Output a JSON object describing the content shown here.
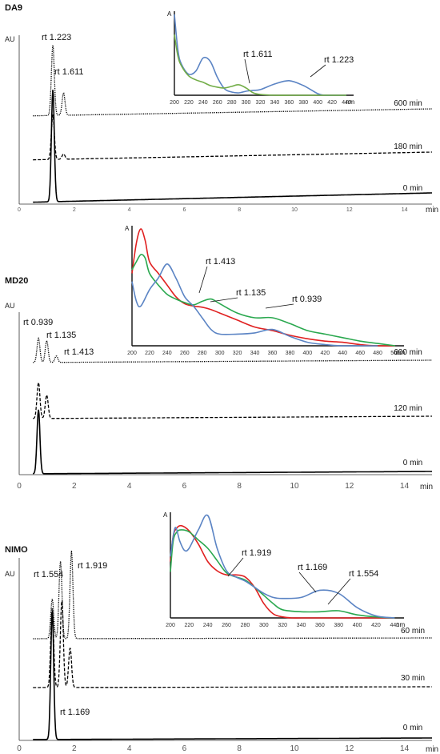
{
  "chart_data": [
    {
      "id": "DA9",
      "type": "line",
      "title": "DA9",
      "ylabel": "AU",
      "xlabel": "min",
      "xlim": [
        0,
        15
      ],
      "xticks": [
        "0",
        "2",
        "4",
        "6",
        "8",
        "10",
        "12",
        "14"
      ],
      "series": [
        {
          "name": "600 min",
          "style": "dotted",
          "peaks": [
            {
              "rt": 1.223,
              "h": 1.0
            },
            {
              "rt": 1.611,
              "h": 0.32
            }
          ]
        },
        {
          "name": "180 min",
          "style": "dashed",
          "peaks": [
            {
              "rt": 1.223,
              "h": 1.0
            },
            {
              "rt": 1.611,
              "h": 0.12
            }
          ]
        },
        {
          "name": "0 min",
          "style": "solid",
          "peaks": [
            {
              "rt": 1.223,
              "h": 1.0
            }
          ]
        }
      ],
      "peak_labels": [
        "rt 1.223",
        "rt 1.611"
      ],
      "inset": {
        "ylabel": "A",
        "xlabel": "nm",
        "xlim": [
          200,
          450
        ],
        "xticks": [
          "200",
          "220",
          "240",
          "260",
          "280",
          "300",
          "320",
          "340",
          "360",
          "380",
          "400",
          "420",
          "440"
        ],
        "series": [
          {
            "name": "rt 1.223",
            "color": "#5b84c4",
            "x": [
              200,
              205,
              210,
              220,
              230,
              240,
              250,
              260,
              270,
              280,
              290,
              300,
              310,
              320,
              340,
              360,
              380,
              400,
              410,
              420,
              440
            ],
            "y": [
              1.0,
              0.55,
              0.38,
              0.26,
              0.3,
              0.46,
              0.42,
              0.22,
              0.08,
              0.04,
              0.03,
              0.05,
              0.06,
              0.07,
              0.14,
              0.18,
              0.12,
              0.02,
              0.0,
              0.0,
              0.0
            ]
          },
          {
            "name": "rt 1.611",
            "color": "#72ad47",
            "x": [
              200,
              205,
              210,
              220,
              230,
              240,
              250,
              260,
              270,
              280,
              290,
              300,
              310,
              320,
              340,
              360,
              380,
              400,
              420,
              440
            ],
            "y": [
              0.75,
              0.48,
              0.36,
              0.24,
              0.19,
              0.16,
              0.12,
              0.1,
              0.09,
              0.11,
              0.13,
              0.09,
              0.03,
              0.01,
              0.0,
              0.0,
              0.0,
              0.0,
              0.0,
              0.0
            ]
          }
        ]
      }
    },
    {
      "id": "MD20",
      "type": "line",
      "title": "MD20",
      "ylabel": "AU",
      "xlabel": "min",
      "xlim": [
        0,
        15
      ],
      "xticks": [
        "0",
        "2",
        "4",
        "6",
        "8",
        "10",
        "12",
        "14"
      ],
      "series": [
        {
          "name": "600 min",
          "style": "dotted",
          "peaks": [
            {
              "rt": 0.7,
              "h": 0.75
            },
            {
              "rt": 1.0,
              "h": 0.68
            },
            {
              "rt": 1.35,
              "h": 0.2
            }
          ]
        },
        {
          "name": "120 min",
          "style": "dashed",
          "peaks": [
            {
              "rt": 0.7,
              "h": 1.0
            },
            {
              "rt": 1.0,
              "h": 0.65
            }
          ]
        },
        {
          "name": "0 min",
          "style": "solid",
          "peaks": [
            {
              "rt": 0.7,
              "h": 1.0
            }
          ]
        }
      ],
      "peak_labels": [
        "rt 0.939",
        "rt 1.135",
        "rt 1.413"
      ],
      "inset": {
        "ylabel": "A",
        "xlabel": "nm",
        "xlim": [
          200,
          510
        ],
        "xticks": [
          "200",
          "220",
          "240",
          "260",
          "280",
          "300",
          "320",
          "340",
          "360",
          "380",
          "400",
          "420",
          "440",
          "460",
          "480",
          "500"
        ],
        "series": [
          {
            "name": "rt 1.413",
            "color": "#e02020",
            "x": [
              200,
              205,
              210,
              215,
              220,
              230,
              240,
              250,
              260,
              270,
              280,
              290,
              300,
              320,
              340,
              360,
              380,
              400,
              420,
              440,
              460,
              480,
              500
            ],
            "y": [
              0.62,
              0.88,
              1.0,
              0.9,
              0.72,
              0.62,
              0.52,
              0.42,
              0.36,
              0.34,
              0.33,
              0.31,
              0.28,
              0.22,
              0.16,
              0.13,
              0.09,
              0.06,
              0.04,
              0.03,
              0.01,
              0.0,
              0.0
            ]
          },
          {
            "name": "rt 1.135",
            "color": "#2aa84f",
            "x": [
              200,
              205,
              210,
              215,
              220,
              230,
              240,
              250,
              260,
              270,
              280,
              290,
              300,
              320,
              340,
              360,
              380,
              400,
              420,
              440,
              460,
              480,
              500
            ],
            "y": [
              0.65,
              0.72,
              0.78,
              0.75,
              0.62,
              0.52,
              0.44,
              0.4,
              0.37,
              0.35,
              0.38,
              0.4,
              0.36,
              0.28,
              0.24,
              0.24,
              0.19,
              0.13,
              0.1,
              0.07,
              0.04,
              0.02,
              0.0
            ]
          },
          {
            "name": "rt 0.939",
            "color": "#5b84c4",
            "x": [
              200,
              205,
              210,
              220,
              230,
              240,
              250,
              260,
              270,
              280,
              290,
              300,
              320,
              340,
              360,
              380,
              400,
              420,
              440,
              460,
              480
            ],
            "y": [
              0.55,
              0.38,
              0.34,
              0.48,
              0.58,
              0.7,
              0.58,
              0.42,
              0.34,
              0.24,
              0.14,
              0.1,
              0.1,
              0.11,
              0.14,
              0.08,
              0.03,
              0.01,
              0.0,
              0.0,
              0.0
            ]
          }
        ]
      }
    },
    {
      "id": "NIMO",
      "type": "line",
      "title": "NIMO",
      "ylabel": "AU",
      "xlabel": "min",
      "xlim": [
        0,
        15
      ],
      "xticks": [
        "0",
        "2",
        "4",
        "6",
        "8",
        "10",
        "12",
        "14"
      ],
      "series": [
        {
          "name": "60 min",
          "style": "dotted",
          "peaks": [
            {
              "rt": 1.2,
              "h": 0.45
            },
            {
              "rt": 1.5,
              "h": 0.88
            },
            {
              "rt": 1.9,
              "h": 1.0
            }
          ]
        },
        {
          "name": "30 min",
          "style": "dashed",
          "peaks": [
            {
              "rt": 1.2,
              "h": 0.9
            },
            {
              "rt": 1.55,
              "h": 1.0
            },
            {
              "rt": 1.85,
              "h": 0.45
            }
          ]
        },
        {
          "name": "0 min",
          "style": "solid",
          "peaks": [
            {
              "rt": 1.2,
              "h": 1.0
            }
          ]
        }
      ],
      "peak_labels": [
        "rt 1.554",
        "rt 1.919",
        "rt 1.169"
      ],
      "inset": {
        "ylabel": "A",
        "xlabel": "nm",
        "xlim": [
          200,
          450
        ],
        "xticks": [
          "200",
          "220",
          "240",
          "260",
          "280",
          "300",
          "320",
          "340",
          "360",
          "380",
          "400",
          "420",
          "440"
        ],
        "series": [
          {
            "name": "rt 1.919",
            "color": "#e02020",
            "x": [
              200,
              203,
              207,
              212,
              220,
              230,
              240,
              250,
              260,
              270,
              280,
              290,
              300,
              310,
              320,
              330,
              340,
              360,
              380,
              400,
              420,
              440
            ],
            "y": [
              0.55,
              0.8,
              0.88,
              0.9,
              0.85,
              0.72,
              0.55,
              0.46,
              0.42,
              0.42,
              0.4,
              0.3,
              0.14,
              0.04,
              0.01,
              0.0,
              0.0,
              0.0,
              0.0,
              0.0,
              0.0,
              0.0
            ]
          },
          {
            "name": "rt 1.554",
            "color": "#2aa84f",
            "x": [
              200,
              203,
              207,
              212,
              220,
              230,
              240,
              250,
              260,
              270,
              280,
              290,
              300,
              310,
              320,
              340,
              360,
              380,
              400,
              420,
              440
            ],
            "y": [
              0.45,
              0.75,
              0.84,
              0.86,
              0.84,
              0.76,
              0.68,
              0.56,
              0.44,
              0.4,
              0.37,
              0.3,
              0.22,
              0.14,
              0.08,
              0.06,
              0.06,
              0.07,
              0.03,
              0.01,
              0.0
            ]
          },
          {
            "name": "rt 1.169",
            "color": "#5b84c4",
            "x": [
              200,
              205,
              210,
              215,
              220,
              230,
              240,
              250,
              260,
              270,
              280,
              290,
              300,
              310,
              320,
              340,
              360,
              380,
              400,
              420,
              440
            ],
            "y": [
              0.6,
              0.88,
              0.75,
              0.66,
              0.68,
              0.86,
              1.0,
              0.68,
              0.46,
              0.4,
              0.36,
              0.3,
              0.24,
              0.2,
              0.19,
              0.2,
              0.27,
              0.24,
              0.1,
              0.02,
              0.0
            ]
          }
        ]
      }
    }
  ]
}
